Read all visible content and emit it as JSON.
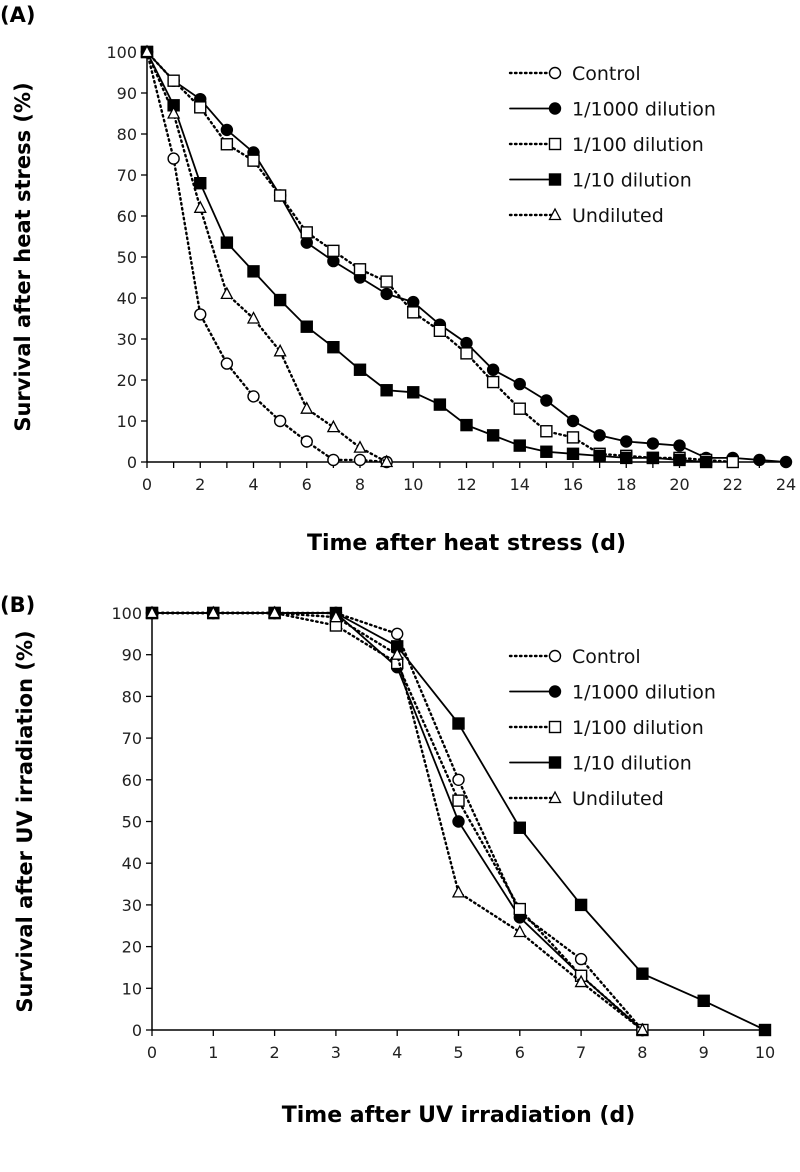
{
  "chart_data": [
    {
      "type": "line",
      "panel_label": "(A)",
      "xlabel": "Time after heat stress  (d)",
      "ylabel": "Survival after heat stress (%)",
      "xlim": [
        0,
        24
      ],
      "ylim": [
        0,
        100
      ],
      "xticks": [
        0,
        2,
        4,
        6,
        8,
        10,
        12,
        14,
        16,
        18,
        20,
        22,
        24
      ],
      "yticks": [
        0,
        10,
        20,
        30,
        40,
        50,
        60,
        70,
        80,
        90,
        100
      ],
      "grid": false,
      "legend": "top-right",
      "series": [
        {
          "name": "Control",
          "marker": "circle-open",
          "line": "dotted",
          "x": [
            0,
            1,
            2,
            3,
            4,
            5,
            6,
            7,
            8,
            9
          ],
          "y": [
            100,
            74,
            36,
            24,
            16,
            10,
            5,
            0.5,
            0.5,
            0
          ]
        },
        {
          "name": "1/1000 dilution",
          "marker": "circle-filled",
          "line": "solid",
          "x": [
            0,
            1,
            2,
            3,
            4,
            5,
            6,
            7,
            8,
            9,
            10,
            11,
            12,
            13,
            14,
            15,
            16,
            17,
            18,
            19,
            20,
            21,
            22,
            23,
            24
          ],
          "y": [
            100,
            93,
            88.5,
            81,
            75.5,
            65,
            53.5,
            49,
            45,
            41,
            39,
            33.5,
            29,
            22.5,
            19,
            15,
            10,
            6.5,
            5,
            4.5,
            4,
            1,
            1,
            0.5,
            0
          ]
        },
        {
          "name": "1/100 dilution",
          "marker": "square-open",
          "line": "dotted",
          "x": [
            0,
            1,
            2,
            3,
            4,
            5,
            6,
            7,
            8,
            9,
            10,
            11,
            12,
            13,
            14,
            15,
            16,
            17,
            18,
            19,
            20,
            21,
            22
          ],
          "y": [
            100,
            93,
            86.5,
            77.5,
            73.5,
            65,
            56,
            51.5,
            47,
            44,
            36.5,
            32,
            26.5,
            19.5,
            13,
            7.5,
            6,
            2,
            1.5,
            1,
            1,
            0.5,
            0
          ]
        },
        {
          "name": "1/10 dilution",
          "marker": "square-filled",
          "line": "solid",
          "x": [
            0,
            1,
            2,
            3,
            4,
            5,
            6,
            7,
            8,
            9,
            10,
            11,
            12,
            13,
            14,
            15,
            16,
            17,
            18,
            19,
            20,
            21
          ],
          "y": [
            100,
            87,
            68,
            53.5,
            46.5,
            39.5,
            33,
            28,
            22.5,
            17.5,
            17,
            14,
            9,
            6.5,
            4,
            2.5,
            2,
            1.5,
            1,
            1,
            0.5,
            0
          ]
        },
        {
          "name": "Undiluted",
          "marker": "triangle-open",
          "line": "dotted",
          "x": [
            0,
            1,
            2,
            3,
            4,
            5,
            6,
            7,
            8,
            9
          ],
          "y": [
            100,
            85,
            62,
            41,
            35,
            27,
            13,
            8.5,
            3.5,
            0
          ]
        }
      ]
    },
    {
      "type": "line",
      "panel_label": "(B)",
      "xlabel": "Time after UV irradiation  (d)",
      "ylabel": "Survival after UV irradiation (%)",
      "xlim": [
        0,
        10
      ],
      "ylim": [
        0,
        100
      ],
      "xticks": [
        0,
        1,
        2,
        3,
        4,
        5,
        6,
        7,
        8,
        9,
        10
      ],
      "yticks": [
        0,
        10,
        20,
        30,
        40,
        50,
        60,
        70,
        80,
        90,
        100
      ],
      "grid": false,
      "legend": "top-right",
      "series": [
        {
          "name": "Control",
          "marker": "circle-open",
          "line": "dotted",
          "x": [
            0,
            1,
            2,
            3,
            4,
            5,
            6,
            7,
            8
          ],
          "y": [
            100,
            100,
            100,
            100,
            95,
            60,
            28,
            17,
            0
          ]
        },
        {
          "name": "1/1000 dilution",
          "marker": "circle-filled",
          "line": "solid",
          "x": [
            0,
            1,
            2,
            3,
            4,
            5,
            6,
            7,
            8
          ],
          "y": [
            100,
            100,
            100,
            100,
            87,
            50,
            27,
            13,
            0
          ]
        },
        {
          "name": "1/100 dilution",
          "marker": "square-open",
          "line": "dotted",
          "x": [
            0,
            1,
            2,
            3,
            4,
            5,
            6,
            7,
            8
          ],
          "y": [
            100,
            100,
            100,
            97,
            88,
            55,
            29,
            13,
            0
          ]
        },
        {
          "name": "1/10 dilution",
          "marker": "square-filled",
          "line": "solid",
          "x": [
            0,
            1,
            2,
            3,
            4,
            5,
            6,
            7,
            8,
            9,
            10
          ],
          "y": [
            100,
            100,
            100,
            100,
            92,
            73.5,
            48.5,
            30,
            13.5,
            7,
            0
          ]
        },
        {
          "name": "Undiluted",
          "marker": "triangle-open",
          "line": "dotted",
          "x": [
            0,
            1,
            2,
            3,
            4,
            5,
            6,
            7,
            8
          ],
          "y": [
            100,
            100,
            100,
            99,
            90,
            33,
            23.5,
            11.5,
            0
          ]
        }
      ]
    }
  ]
}
